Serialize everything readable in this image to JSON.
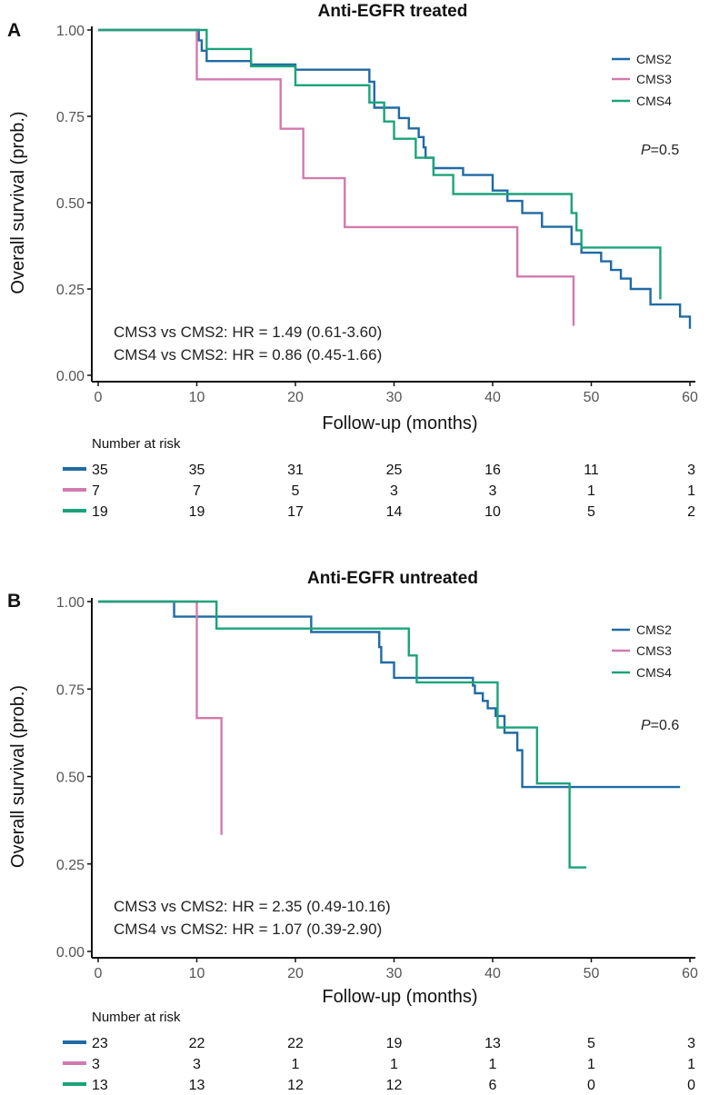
{
  "colors": {
    "CMS2": "#1f6aa5",
    "CMS3": "#d27aad",
    "CMS4": "#1aa37a"
  },
  "chart_data": [
    {
      "panel": "A",
      "type": "line",
      "subtype": "kaplan-meier",
      "title": "Anti-EGFR treated",
      "xlabel": "Follow-up (months)",
      "ylabel": "Overall survival (prob.)",
      "xlim": [
        0,
        60
      ],
      "ylim": [
        0,
        1
      ],
      "xticks": [
        0,
        10,
        20,
        30,
        40,
        50,
        60
      ],
      "yticks": [
        0,
        0.25,
        0.5,
        0.75,
        1
      ],
      "ytick_labels": [
        "0.00",
        "0.25",
        "0.50",
        "0.75",
        "1.00"
      ],
      "series": [
        {
          "name": "CMS2",
          "x": [
            0,
            10.2,
            10.5,
            11,
            15.5,
            20,
            27.5,
            28,
            30.5,
            31.5,
            32.5,
            33,
            33.2,
            34,
            37,
            40,
            41.5,
            43,
            45,
            48,
            49,
            51,
            52,
            53,
            54,
            56,
            59,
            60
          ],
          "y": [
            1,
            0.97,
            0.94,
            0.91,
            0.9,
            0.885,
            0.85,
            0.775,
            0.745,
            0.715,
            0.69,
            0.66,
            0.63,
            0.6,
            0.58,
            0.535,
            0.505,
            0.47,
            0.43,
            0.38,
            0.355,
            0.33,
            0.305,
            0.28,
            0.25,
            0.205,
            0.17,
            0.135
          ]
        },
        {
          "name": "CMS3",
          "x": [
            0,
            10,
            18.5,
            20.8,
            25,
            42.5,
            48.2
          ],
          "y": [
            1,
            0.857,
            0.714,
            0.571,
            0.429,
            0.286,
            0.143
          ]
        },
        {
          "name": "CMS4",
          "x": [
            0,
            11,
            15.5,
            20,
            27.5,
            29,
            30,
            32.2,
            34,
            36,
            48,
            48.5,
            49,
            57
          ],
          "y": [
            1,
            0.945,
            0.895,
            0.84,
            0.79,
            0.735,
            0.685,
            0.63,
            0.58,
            0.525,
            0.47,
            0.42,
            0.37,
            0.22
          ]
        }
      ],
      "legend": [
        "CMS2",
        "CMS3",
        "CMS4"
      ],
      "p_value_label": "P",
      "p_value": "=0.5",
      "hr_lines": [
        "CMS3 vs CMS2: HR = 1.49 (0.61-3.60)",
        "CMS4 vs CMS2: HR = 0.86 (0.45-1.66)"
      ],
      "risk_title": "Number at risk",
      "risk_table": [
        {
          "name": "CMS2",
          "values": [
            "35",
            "35",
            "31",
            "25",
            "16",
            "11",
            "3"
          ]
        },
        {
          "name": "CMS3",
          "values": [
            "7",
            "7",
            "5",
            "3",
            "3",
            "1",
            "1"
          ]
        },
        {
          "name": "CMS4",
          "values": [
            "19",
            "19",
            "17",
            "14",
            "10",
            "5",
            "2"
          ]
        }
      ]
    },
    {
      "panel": "B",
      "type": "line",
      "subtype": "kaplan-meier",
      "title": "Anti-EGFR untreated",
      "xlabel": "Follow-up (months)",
      "ylabel": "Overall survival (prob.)",
      "xlim": [
        0,
        60
      ],
      "ylim": [
        0,
        1
      ],
      "xticks": [
        0,
        10,
        20,
        30,
        40,
        50,
        60
      ],
      "yticks": [
        0,
        0.25,
        0.5,
        0.75,
        1
      ],
      "ytick_labels": [
        "0.00",
        "0.25",
        "0.50",
        "0.75",
        "1.00"
      ],
      "series": [
        {
          "name": "CMS2",
          "x": [
            0,
            7.7,
            21.6,
            28.5,
            28.7,
            30,
            38,
            38.2,
            39,
            39.5,
            40.3,
            41.2,
            42.5,
            43,
            59
          ],
          "y": [
            1,
            0.957,
            0.913,
            0.87,
            0.826,
            0.782,
            0.76,
            0.738,
            0.716,
            0.695,
            0.673,
            0.625,
            0.575,
            0.47,
            0.47
          ]
        },
        {
          "name": "CMS3",
          "x": [
            0,
            10,
            12.5
          ],
          "y": [
            1,
            0.667,
            0.333
          ]
        },
        {
          "name": "CMS4",
          "x": [
            0,
            12,
            31.5,
            32.3,
            40.5,
            44.5,
            47.8,
            49.5
          ],
          "y": [
            1,
            0.923,
            0.846,
            0.769,
            0.64,
            0.48,
            0.24,
            0.24
          ]
        }
      ],
      "legend": [
        "CMS2",
        "CMS3",
        "CMS4"
      ],
      "p_value_label": "P",
      "p_value": "=0.6",
      "hr_lines": [
        "CMS3 vs CMS2: HR = 2.35 (0.49-10.16)",
        "CMS4 vs CMS2: HR = 1.07 (0.39-2.90)"
      ],
      "risk_title": "Number at risk",
      "risk_table": [
        {
          "name": "CMS2",
          "values": [
            "23",
            "22",
            "22",
            "19",
            "13",
            "5",
            "3"
          ]
        },
        {
          "name": "CMS3",
          "values": [
            "3",
            "3",
            "1",
            "1",
            "1",
            "1",
            "1"
          ]
        },
        {
          "name": "CMS4",
          "values": [
            "13",
            "13",
            "12",
            "12",
            "6",
            "0",
            "0"
          ]
        }
      ]
    }
  ]
}
